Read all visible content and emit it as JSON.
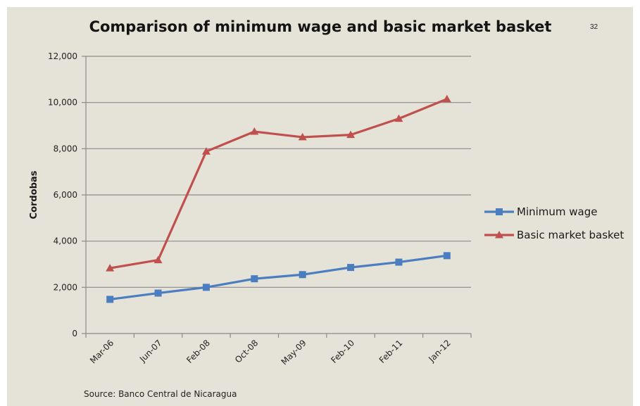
{
  "page_number": "32",
  "source": "Source:  Banco Central de Nicaragua",
  "colors": {
    "background": "#e5e3d7",
    "minimum_wage": "#4a7ec0",
    "basic_market_basket": "#c0504d",
    "gridline": "#8a8a8a"
  },
  "chart_data": {
    "type": "line",
    "title": "Comparison of minimum wage and basic market basket",
    "xlabel": "",
    "ylabel": "Cordobas",
    "categories": [
      "Mar-06",
      "Jun-07",
      "Feb-08",
      "Oct-08",
      "May-09",
      "Feb-10",
      "Feb-11",
      "Jan-12"
    ],
    "ylim": [
      0,
      12000
    ],
    "yticks": [
      0,
      2000,
      4000,
      6000,
      8000,
      10000,
      12000
    ],
    "ytick_labels": [
      "0",
      "2,000",
      "4,000",
      "6,000",
      "8,000",
      "10,000",
      "12,000"
    ],
    "grid": true,
    "legend_position": "right",
    "series": [
      {
        "name": "Minimum wage",
        "marker": "square",
        "color": "#4a7ec0",
        "values": [
          1480,
          1750,
          2000,
          2370,
          2550,
          2860,
          3090,
          3370
        ]
      },
      {
        "name": "Basic market basket",
        "marker": "triangle",
        "color": "#c0504d",
        "values": [
          2830,
          3180,
          7880,
          8740,
          8500,
          8600,
          9300,
          10150
        ]
      }
    ]
  }
}
